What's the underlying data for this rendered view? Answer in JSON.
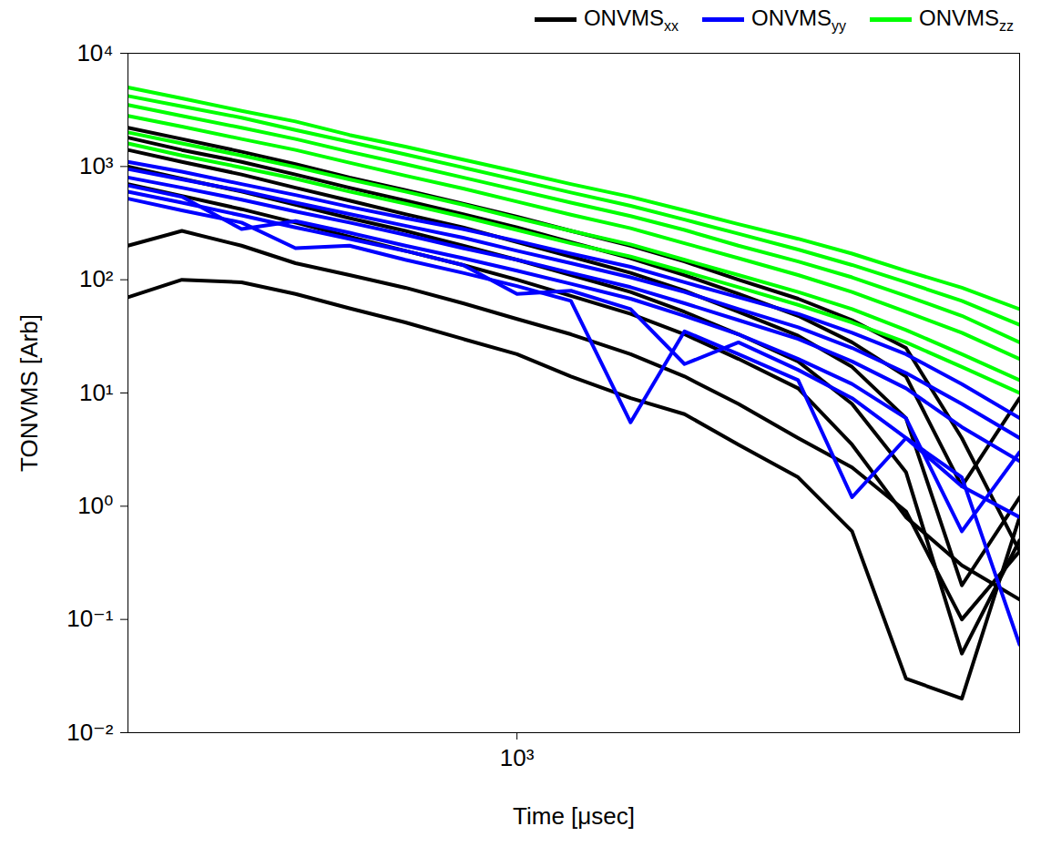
{
  "chart_data": {
    "type": "line",
    "x_label": "Time [μsec]",
    "y_label": "TONVMS [Arb]",
    "log": true,
    "grid": false,
    "legend": "top",
    "xlim": [
      200,
      8000
    ],
    "ylim": [
      0.01,
      10000
    ],
    "xticks": [
      {
        "value": 1000,
        "label": "10³"
      }
    ],
    "yticks": [
      {
        "value": 0.01,
        "label": "10⁻²"
      },
      {
        "value": 0.1,
        "label": "10⁻¹"
      },
      {
        "value": 1,
        "label": "10⁰"
      },
      {
        "value": 10,
        "label": "10¹"
      },
      {
        "value": 100,
        "label": "10²"
      },
      {
        "value": 1000,
        "label": "10³"
      },
      {
        "value": 10000,
        "label": "10⁴"
      }
    ],
    "x": [
      200,
      250,
      320,
      400,
      500,
      630,
      800,
      1000,
      1250,
      1600,
      2000,
      2500,
      3200,
      4000,
      5000,
      6300,
      8000
    ],
    "series": [
      {
        "name": "ONVMSxx",
        "color": "#000000",
        "values": [
          [
            2200,
            1750,
            1350,
            1050,
            800,
            620,
            470,
            360,
            270,
            200,
            145,
            100,
            68,
            44,
            25,
            4,
            0.4
          ],
          [
            1800,
            1400,
            1100,
            850,
            650,
            500,
            380,
            290,
            215,
            155,
            110,
            75,
            48,
            28,
            14,
            1.5,
            9
          ],
          [
            1400,
            1100,
            850,
            650,
            500,
            380,
            290,
            215,
            160,
            115,
            80,
            52,
            32,
            17,
            6,
            0.2,
            1.2
          ],
          [
            1000,
            780,
            600,
            460,
            350,
            270,
            200,
            150,
            110,
            78,
            52,
            33,
            19,
            8,
            2,
            0.05,
            0.5
          ],
          [
            700,
            550,
            420,
            320,
            240,
            180,
            135,
            100,
            72,
            50,
            33,
            20,
            11,
            3.5,
            0.8,
            0.3,
            0.15
          ],
          [
            200,
            270,
            200,
            140,
            110,
            85,
            62,
            45,
            33,
            22,
            14,
            8,
            4,
            2.2,
            0.9,
            0.1,
            0.4
          ],
          [
            70,
            100,
            95,
            75,
            56,
            42,
            30,
            22,
            14,
            9,
            6.5,
            3.5,
            1.8,
            0.6,
            0.03,
            0.02,
            0.8
          ]
        ]
      },
      {
        "name": "ONVMSyy",
        "color": "#0000ff",
        "values": [
          [
            1100,
            900,
            700,
            560,
            440,
            350,
            280,
            220,
            170,
            130,
            95,
            70,
            50,
            34,
            22,
            12,
            6
          ],
          [
            950,
            770,
            610,
            480,
            380,
            300,
            235,
            180,
            140,
            105,
            78,
            55,
            38,
            25,
            15,
            8,
            4
          ],
          [
            800,
            650,
            510,
            400,
            320,
            250,
            190,
            150,
            115,
            86,
            62,
            44,
            30,
            19,
            11,
            5,
            2.5
          ],
          [
            680,
            540,
            280,
            330,
            260,
            200,
            155,
            120,
            92,
            68,
            48,
            33,
            20,
            12,
            6,
            0.6,
            3
          ],
          [
            600,
            480,
            370,
            290,
            230,
            180,
            135,
            75,
            80,
            55,
            18,
            28,
            16,
            9,
            4,
            1.5,
            0.8
          ],
          [
            520,
            410,
            320,
            190,
            200,
            150,
            115,
            88,
            65,
            5.5,
            35,
            22,
            13,
            1.2,
            4,
            1.8,
            0.06
          ]
        ]
      },
      {
        "name": "ONVMSzz",
        "color": "#00ff00",
        "values": [
          [
            5000,
            4000,
            3100,
            2500,
            1900,
            1500,
            1150,
            900,
            700,
            540,
            410,
            310,
            230,
            170,
            120,
            85,
            55
          ],
          [
            4200,
            3400,
            2700,
            2100,
            1650,
            1280,
            980,
            760,
            590,
            450,
            340,
            255,
            185,
            135,
            95,
            65,
            40
          ],
          [
            3500,
            2800,
            2200,
            1750,
            1350,
            1050,
            800,
            620,
            480,
            365,
            275,
            200,
            145,
            105,
            72,
            48,
            28
          ],
          [
            2800,
            2250,
            1750,
            1400,
            1080,
            830,
            640,
            490,
            375,
            285,
            210,
            155,
            110,
            78,
            52,
            34,
            20
          ],
          [
            2000,
            1600,
            1250,
            990,
            770,
            600,
            460,
            350,
            270,
            205,
            150,
            110,
            78,
            55,
            36,
            22,
            13
          ],
          [
            1600,
            1250,
            980,
            780,
            600,
            470,
            360,
            275,
            210,
            160,
            118,
            86,
            60,
            42,
            28,
            17,
            10
          ]
        ]
      }
    ]
  }
}
